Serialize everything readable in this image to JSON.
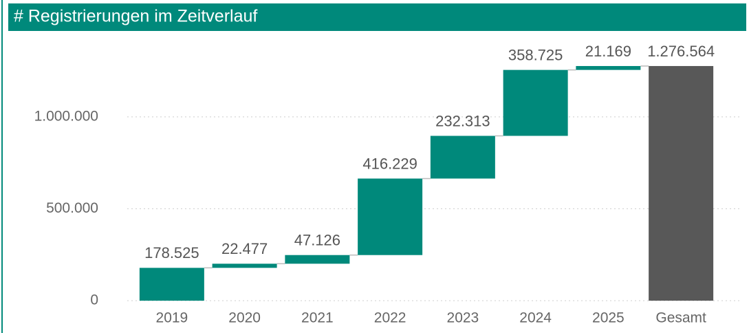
{
  "chart_data": {
    "type": "waterfall",
    "title": "# Registrierungen im Zeitverlauf",
    "categories": [
      "2019",
      "2020",
      "2021",
      "2022",
      "2023",
      "2024",
      "2025"
    ],
    "values": [
      178525,
      22477,
      47126,
      416229,
      232313,
      358725,
      21169
    ],
    "value_labels": [
      "178.525",
      "22.477",
      "47.126",
      "416.229",
      "232.313",
      "358.725",
      "21.169"
    ],
    "total_category": "Gesamt",
    "total": 1276564,
    "total_label": "1.276.564",
    "color": "#00897b",
    "total_color": "#585858",
    "ylim": [
      0,
      1400000
    ],
    "yticks": [
      0,
      {
        "value": 500000,
        "label": "500.000"
      },
      {
        "value": 1000000,
        "label": "1.000.000"
      }
    ],
    "grid": true
  }
}
